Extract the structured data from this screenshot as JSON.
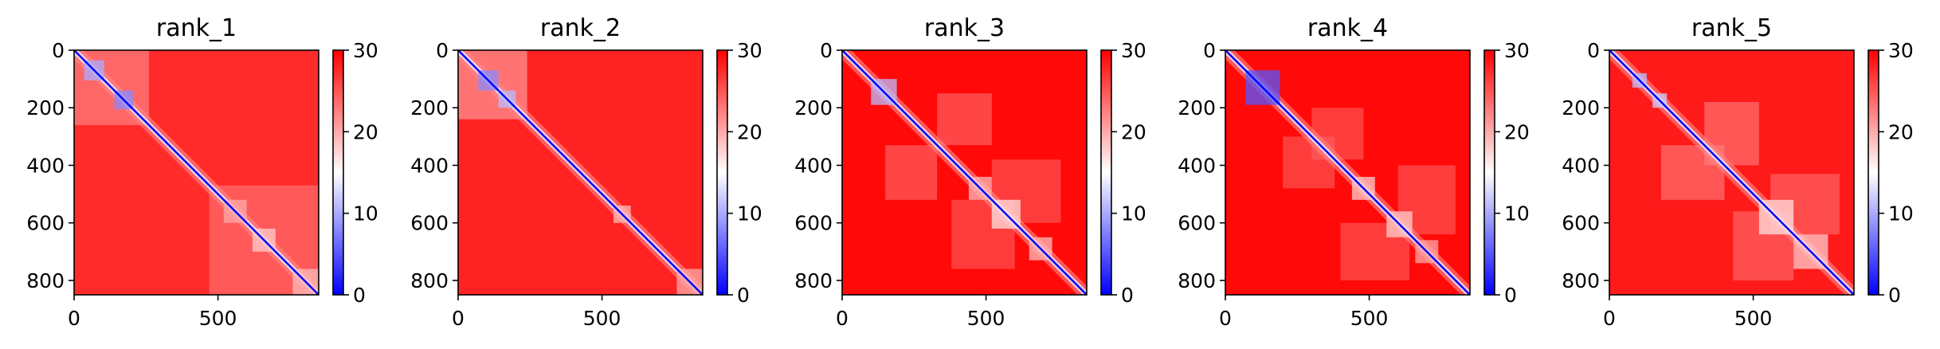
{
  "chart_data": [
    {
      "type": "heatmap",
      "title": "rank_1",
      "xlabel": "",
      "ylabel": "",
      "matrix_size": 850,
      "xlim": [
        0,
        850
      ],
      "ylim": [
        850,
        0
      ],
      "x_ticks": [
        0,
        500
      ],
      "y_ticks": [
        0,
        200,
        400,
        600,
        800
      ],
      "colorbar": {
        "min": 0,
        "max": 30,
        "ticks": [
          0,
          10,
          20,
          30
        ],
        "colormap": "bwr"
      },
      "colors": {
        "low": "#0000ff",
        "mid": "#ffffff",
        "high": "#ff0000"
      },
      "background_level": 27.5,
      "diagonal_blocks": [
        {
          "start": 35,
          "end": 105,
          "level": 10
        },
        {
          "start": 140,
          "end": 205,
          "level": 8
        },
        {
          "start": 520,
          "end": 600,
          "level": 20
        },
        {
          "start": 620,
          "end": 700,
          "level": 18
        },
        {
          "start": 760,
          "end": 850,
          "level": 19
        }
      ],
      "off_diagonal_features": [
        {
          "x1": 0,
          "y1": 0,
          "x2": 260,
          "y2": 260,
          "level": 23
        },
        {
          "x1": 470,
          "y1": 470,
          "x2": 850,
          "y2": 850,
          "level": 24
        }
      ]
    },
    {
      "type": "heatmap",
      "title": "rank_2",
      "xlabel": "",
      "ylabel": "",
      "matrix_size": 850,
      "xlim": [
        0,
        850
      ],
      "ylim": [
        850,
        0
      ],
      "x_ticks": [
        0,
        500
      ],
      "y_ticks": [
        0,
        200,
        400,
        600,
        800
      ],
      "colorbar": {
        "min": 0,
        "max": 30,
        "ticks": [
          0,
          10,
          20,
          30
        ],
        "colormap": "bwr"
      },
      "colors": {
        "low": "#0000ff",
        "mid": "#ffffff",
        "high": "#ff0000"
      },
      "background_level": 28,
      "diagonal_blocks": [
        {
          "start": 70,
          "end": 140,
          "level": 8
        },
        {
          "start": 140,
          "end": 200,
          "level": 11
        },
        {
          "start": 540,
          "end": 600,
          "level": 19
        },
        {
          "start": 760,
          "end": 850,
          "level": 20
        }
      ],
      "off_diagonal_features": [
        {
          "x1": 0,
          "y1": 0,
          "x2": 240,
          "y2": 240,
          "level": 22
        }
      ]
    },
    {
      "type": "heatmap",
      "title": "rank_3",
      "xlabel": "",
      "ylabel": "",
      "matrix_size": 850,
      "xlim": [
        0,
        850
      ],
      "ylim": [
        850,
        0
      ],
      "x_ticks": [
        0,
        500
      ],
      "y_ticks": [
        0,
        200,
        400,
        600,
        800
      ],
      "colorbar": {
        "min": 0,
        "max": 30,
        "ticks": [
          0,
          10,
          20,
          30
        ],
        "colormap": "bwr"
      },
      "colors": {
        "low": "#0000ff",
        "mid": "#ffffff",
        "high": "#ff0000"
      },
      "background_level": 29.5,
      "diagonal_blocks": [
        {
          "start": 100,
          "end": 190,
          "level": 11
        },
        {
          "start": 440,
          "end": 520,
          "level": 19
        },
        {
          "start": 520,
          "end": 620,
          "level": 17
        },
        {
          "start": 650,
          "end": 730,
          "level": 19
        }
      ],
      "off_diagonal_features": [
        {
          "x1": 150,
          "y1": 330,
          "x2": 330,
          "y2": 520,
          "level": 23
        },
        {
          "x1": 380,
          "y1": 520,
          "x2": 600,
          "y2": 760,
          "level": 24
        }
      ]
    },
    {
      "type": "heatmap",
      "title": "rank_4",
      "xlabel": "",
      "ylabel": "",
      "matrix_size": 850,
      "xlim": [
        0,
        850
      ],
      "ylim": [
        850,
        0
      ],
      "x_ticks": [
        0,
        500
      ],
      "y_ticks": [
        0,
        200,
        400,
        600,
        800
      ],
      "colorbar": {
        "min": 0,
        "max": 30,
        "ticks": [
          0,
          10,
          20,
          30
        ],
        "colormap": "bwr"
      },
      "colors": {
        "low": "#0000ff",
        "mid": "#ffffff",
        "high": "#ff0000"
      },
      "background_level": 29.5,
      "diagonal_blocks": [
        {
          "start": 70,
          "end": 190,
          "level": 5
        },
        {
          "start": 440,
          "end": 520,
          "level": 18
        },
        {
          "start": 560,
          "end": 650,
          "level": 18
        },
        {
          "start": 660,
          "end": 740,
          "level": 20
        }
      ],
      "off_diagonal_features": [
        {
          "x1": 200,
          "y1": 300,
          "x2": 380,
          "y2": 480,
          "level": 24
        },
        {
          "x1": 400,
          "y1": 600,
          "x2": 640,
          "y2": 800,
          "level": 24
        }
      ]
    },
    {
      "type": "heatmap",
      "title": "rank_5",
      "xlabel": "",
      "ylabel": "",
      "matrix_size": 850,
      "xlim": [
        0,
        850
      ],
      "ylim": [
        850,
        0
      ],
      "x_ticks": [
        0,
        500
      ],
      "y_ticks": [
        0,
        200,
        400,
        600,
        800
      ],
      "colorbar": {
        "min": 0,
        "max": 30,
        "ticks": [
          0,
          10,
          20,
          30
        ],
        "colormap": "bwr"
      },
      "colors": {
        "low": "#0000ff",
        "mid": "#ffffff",
        "high": "#ff0000"
      },
      "background_level": 28.5,
      "diagonal_blocks": [
        {
          "start": 80,
          "end": 130,
          "level": 11
        },
        {
          "start": 150,
          "end": 200,
          "level": 12
        },
        {
          "start": 520,
          "end": 640,
          "level": 17
        },
        {
          "start": 640,
          "end": 760,
          "level": 18
        }
      ],
      "off_diagonal_features": [
        {
          "x1": 180,
          "y1": 330,
          "x2": 400,
          "y2": 520,
          "level": 22
        },
        {
          "x1": 430,
          "y1": 560,
          "x2": 640,
          "y2": 800,
          "level": 23
        }
      ]
    }
  ]
}
